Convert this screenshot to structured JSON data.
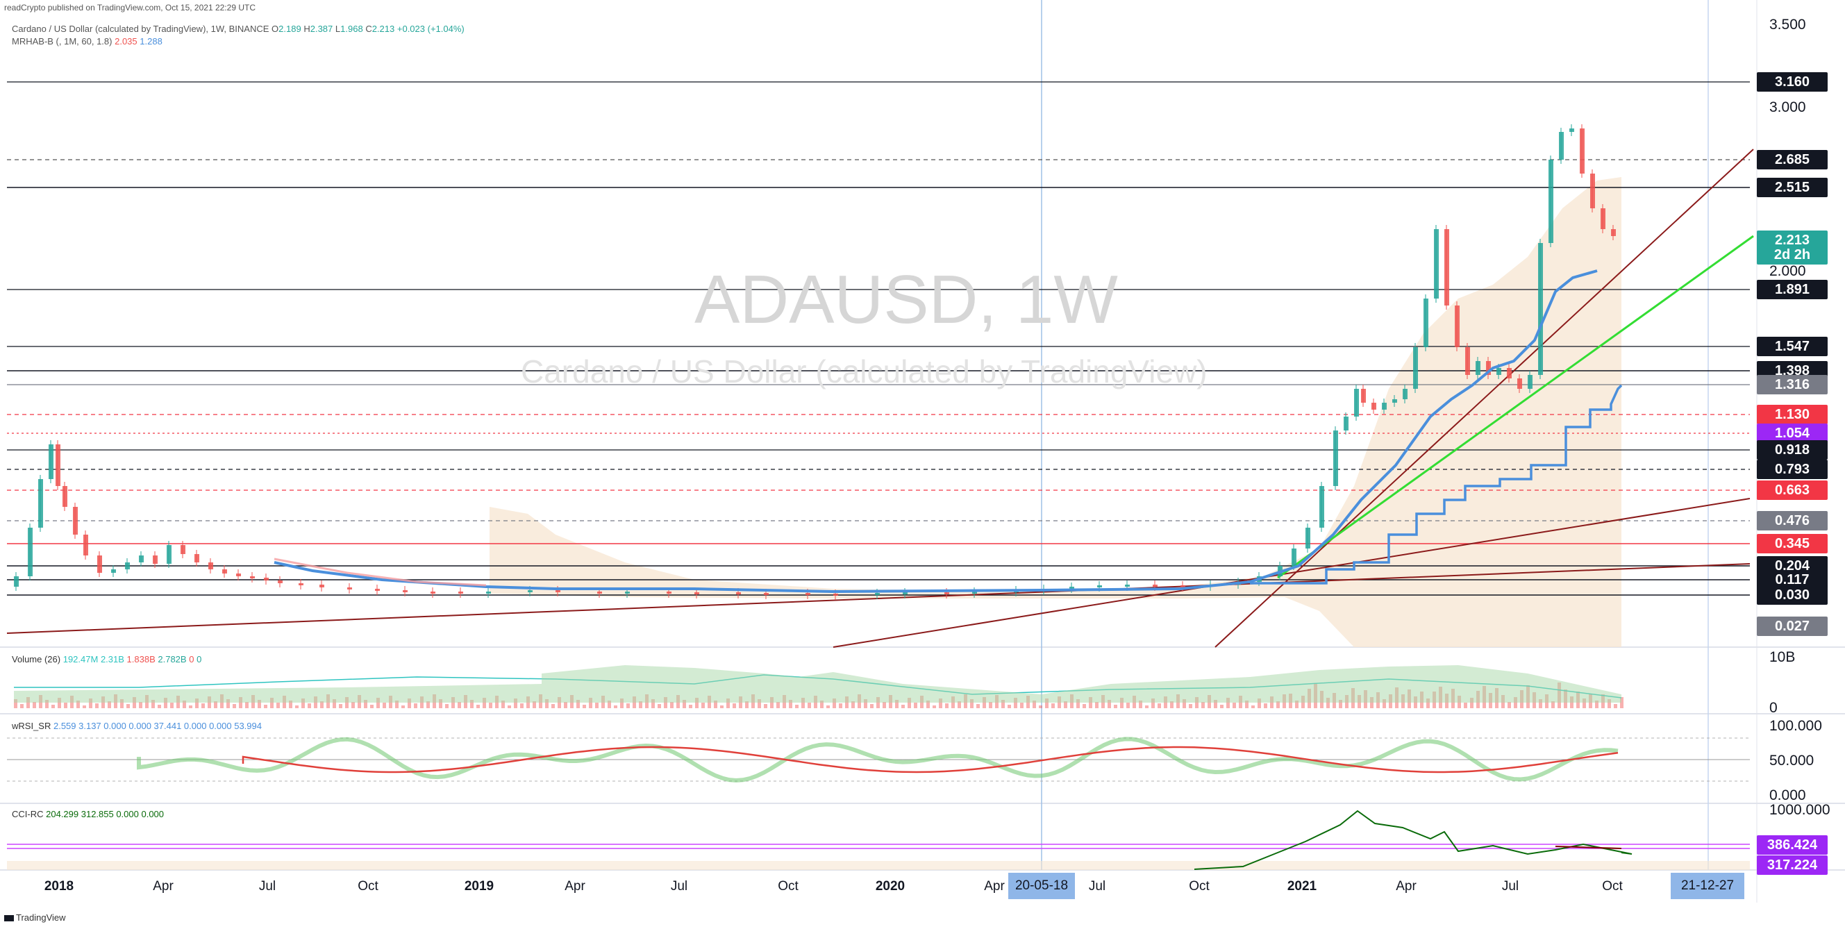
{
  "header": {
    "published": "readCrypto published on TradingView.com, Oct 15, 2021 22:29 UTC",
    "symbol_line": "Cardano / US Dollar (calculated by TradingView), 1W, BINANCE",
    "ohlc": {
      "o_label": "O",
      "o": "2.189",
      "h_label": "H",
      "h": "2.387",
      "l_label": "L",
      "l": "1.968",
      "c_label": "C",
      "c": "2.213",
      "chg": "+0.023 (+1.04%)"
    },
    "indicator": "MRHAB-B (, 1M, 60, 1.8)",
    "indicator_v1": "2.035",
    "indicator_v2": "1.288"
  },
  "watermark": {
    "title": "ADAUSD, 1W",
    "subtitle": "Cardano / US Dollar (calculated by TradingView)"
  },
  "price_axis": {
    "ticks": [
      "3.500",
      "3.000",
      "2.000"
    ],
    "tags": [
      {
        "text": "3.160",
        "bg": "#131722"
      },
      {
        "text": "2.685",
        "bg": "#131722"
      },
      {
        "text": "2.515",
        "bg": "#131722"
      },
      {
        "text": "2.213",
        "bg": "#26a69a"
      },
      {
        "text": "2d 2h",
        "bg": "#26a69a"
      },
      {
        "text": "1.891",
        "bg": "#131722"
      },
      {
        "text": "1.547",
        "bg": "#131722"
      },
      {
        "text": "1.398",
        "bg": "#131722"
      },
      {
        "text": "1.316",
        "bg": "#787b86"
      },
      {
        "text": "1.130",
        "bg": "#f23645"
      },
      {
        "text": "1.054",
        "bg": "#9c27f5"
      },
      {
        "text": "0.918",
        "bg": "#131722"
      },
      {
        "text": "0.793",
        "bg": "#131722"
      },
      {
        "text": "0.663",
        "bg": "#f23645"
      },
      {
        "text": "0.476",
        "bg": "#787b86"
      },
      {
        "text": "0.345",
        "bg": "#f23645"
      },
      {
        "text": "0.204",
        "bg": "#131722"
      },
      {
        "text": "0.117",
        "bg": "#131722"
      },
      {
        "text": "0.030",
        "bg": "#131722"
      },
      {
        "text": "0.027",
        "bg": "#787b86"
      }
    ]
  },
  "volume_pane": {
    "title": "Volume (26)",
    "v1": "192.47M",
    "v2": "2.31B",
    "v3": "1.838B",
    "v4": "2.782B",
    "v5": "0",
    "v6": "0",
    "ticks": [
      "10B",
      "0"
    ]
  },
  "rsi_pane": {
    "title": "wRSI_SR",
    "values": "2.559  3.137  0.000  0.000  37.441  0.000  0.000  53.994",
    "ticks": [
      "100.000",
      "50.000",
      "0.000"
    ]
  },
  "cci_pane": {
    "title": "CCI-RC",
    "values": "204.299  312.855  0.000  0.000",
    "ticks": [
      "1000.000"
    ],
    "tags": [
      {
        "text": "386.424",
        "bg": "#9c27f5"
      },
      {
        "text": "317.224",
        "bg": "#9c27f5"
      }
    ]
  },
  "time_axis": {
    "labels": [
      {
        "text": "2018",
        "bold": true
      },
      {
        "text": "Apr",
        "bold": false
      },
      {
        "text": "Jul",
        "bold": false
      },
      {
        "text": "Oct",
        "bold": false
      },
      {
        "text": "2019",
        "bold": true
      },
      {
        "text": "Apr",
        "bold": false
      },
      {
        "text": "Jul",
        "bold": false
      },
      {
        "text": "Oct",
        "bold": false
      },
      {
        "text": "2020",
        "bold": true
      },
      {
        "text": "Apr",
        "bold": false
      },
      {
        "text": "Jul",
        "bold": false
      },
      {
        "text": "Oct",
        "bold": false
      },
      {
        "text": "2021",
        "bold": true
      },
      {
        "text": "Apr",
        "bold": false
      },
      {
        "text": "Jul",
        "bold": false
      },
      {
        "text": "Oct",
        "bold": false
      }
    ],
    "marker_left": "20-05-18",
    "marker_right": "21-12-27"
  },
  "footer": {
    "brand": "TradingView"
  },
  "colors": {
    "up": "#26a69a",
    "down": "#ef5350",
    "blue": "#4a8fdc",
    "green": "#33dd33",
    "darkred": "#8b0000",
    "cloud": "#f7e6d2"
  }
}
